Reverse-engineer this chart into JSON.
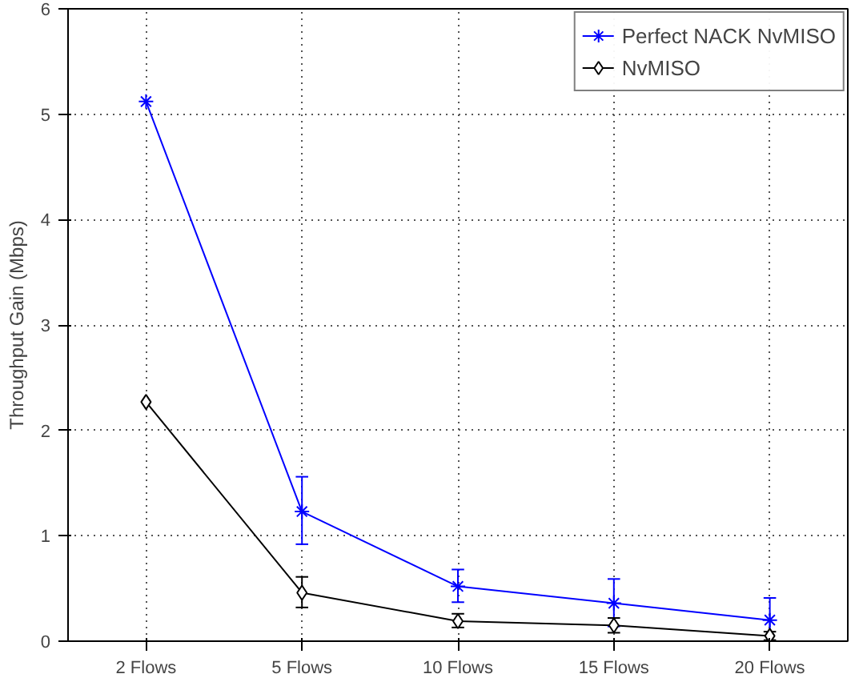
{
  "chart_data": {
    "type": "line",
    "ylabel": "Throughput Gain (Mbps)",
    "categories": [
      "2 Flows",
      "5 Flows",
      "10 Flows",
      "15 Flows",
      "20 Flows"
    ],
    "series": [
      {
        "name": "Perfect NACK NvMISO",
        "color": "#0000ff",
        "marker": "cross",
        "values": [
          5.12,
          1.23,
          0.52,
          0.36,
          0.2
        ],
        "errors": [
          null,
          [
            0.92,
            1.56
          ],
          [
            0.37,
            0.68
          ],
          [
            0.14,
            0.59
          ],
          [
            0.0,
            0.41
          ]
        ]
      },
      {
        "name": "NvMISO",
        "color": "#000000",
        "marker": "diamond",
        "values": [
          2.27,
          0.46,
          0.19,
          0.15,
          0.05
        ],
        "errors": [
          null,
          [
            0.32,
            0.61
          ],
          [
            0.13,
            0.26
          ],
          [
            0.08,
            0.22
          ],
          [
            0.01,
            0.09
          ]
        ]
      }
    ],
    "ylim": [
      0,
      6
    ],
    "yticks": [
      0,
      1,
      2,
      3,
      4,
      5,
      6
    ],
    "grid": true,
    "legend": "top right",
    "line_style": "solid"
  }
}
